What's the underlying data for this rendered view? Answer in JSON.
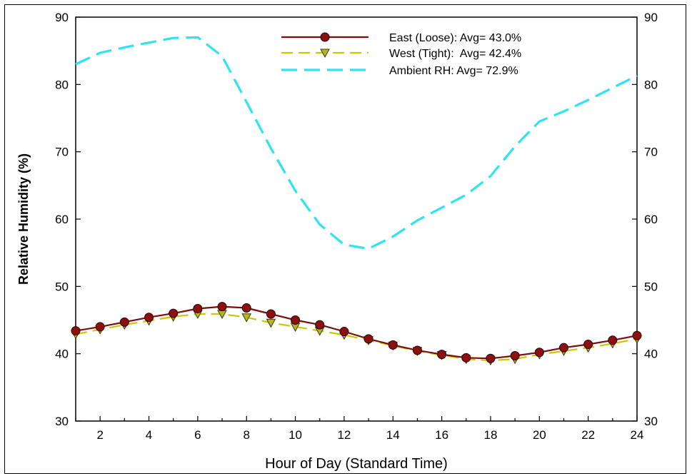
{
  "chart_data": {
    "type": "line",
    "xlabel": "Hour of Day (Standard Time)",
    "ylabel": "Relative Humidity (%)",
    "xlim": [
      1,
      24
    ],
    "ylim": [
      30,
      90
    ],
    "xticks": [
      2,
      4,
      6,
      8,
      10,
      12,
      14,
      16,
      18,
      20,
      22,
      24
    ],
    "yticks": [
      30,
      40,
      50,
      60,
      70,
      80,
      90
    ],
    "x": [
      1,
      2,
      3,
      4,
      5,
      6,
      7,
      8,
      9,
      10,
      11,
      12,
      13,
      14,
      15,
      16,
      17,
      18,
      19,
      20,
      21,
      22,
      23,
      24
    ],
    "series": [
      {
        "name": "East (Loose): Avg= 43.0%",
        "color": "#7a0e0e",
        "marker": "circle",
        "marker_color": "#8b1010",
        "line_style": "solid",
        "values": [
          43.4,
          44.0,
          44.7,
          45.4,
          46.0,
          46.7,
          47.0,
          46.8,
          45.9,
          45.0,
          44.3,
          43.3,
          42.2,
          41.3,
          40.5,
          39.9,
          39.4,
          39.3,
          39.7,
          40.2,
          40.9,
          41.4,
          42.0,
          42.7
        ]
      },
      {
        "name": "West (Tight):  Avg= 42.4%",
        "color": "#c8c800",
        "marker": "triangle-down",
        "marker_color": "#b5b522",
        "line_style": "dashed",
        "values": [
          42.9,
          43.6,
          44.3,
          44.9,
          45.5,
          45.9,
          45.9,
          45.4,
          44.6,
          44.0,
          43.4,
          42.8,
          42.0,
          41.2,
          40.4,
          39.8,
          39.2,
          39.0,
          39.2,
          39.9,
          40.4,
          40.9,
          41.5,
          42.2
        ]
      },
      {
        "name": "Ambient RH: Avg= 72.9%",
        "color": "#2fe3ef",
        "marker": "none",
        "line_style": "dashed",
        "values": [
          83.0,
          84.7,
          85.5,
          86.2,
          86.9,
          87.0,
          84.2,
          77.4,
          70.5,
          64.2,
          59.2,
          56.2,
          55.6,
          57.4,
          59.8,
          61.7,
          63.6,
          66.4,
          70.8,
          74.5,
          76.0,
          77.7,
          79.5,
          81.3
        ]
      }
    ],
    "legend_position": "top-center",
    "grid": false
  }
}
